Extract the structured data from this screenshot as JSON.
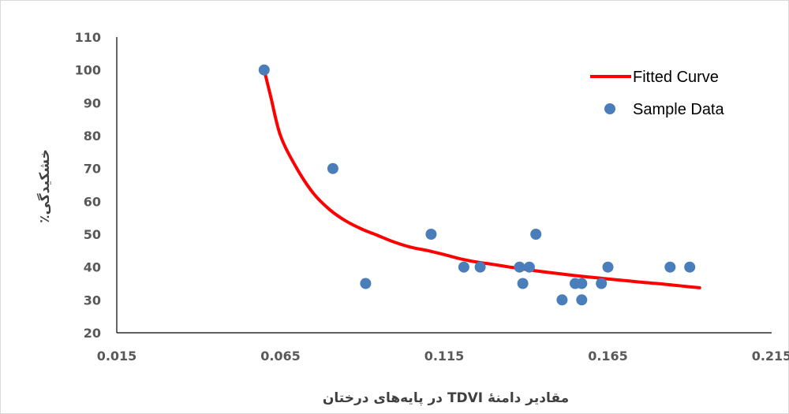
{
  "chart_data": {
    "type": "scatter",
    "title": "",
    "xlabel": "مقادیر دامنهٔ TDVI در پایه‌های درختان",
    "ylabel": "خشکیدگی٪",
    "xlim": [
      0.015,
      0.215
    ],
    "ylim": [
      20,
      110
    ],
    "x_ticks": [
      "0.015",
      "0.065",
      "0.115",
      "0.165",
      "0.215"
    ],
    "y_ticks": [
      "20",
      "30",
      "40",
      "50",
      "60",
      "70",
      "80",
      "90",
      "100",
      "110"
    ],
    "grid": false,
    "legend_position": "top-right",
    "series": [
      {
        "name": "Sample Data",
        "kind": "scatter",
        "color": "#4a7ebb",
        "points": [
          [
            0.06,
            100
          ],
          [
            0.081,
            70
          ],
          [
            0.091,
            35
          ],
          [
            0.111,
            50
          ],
          [
            0.121,
            40
          ],
          [
            0.126,
            40
          ],
          [
            0.138,
            40
          ],
          [
            0.139,
            35
          ],
          [
            0.141,
            40
          ],
          [
            0.143,
            50
          ],
          [
            0.151,
            30
          ],
          [
            0.155,
            35
          ],
          [
            0.157,
            35
          ],
          [
            0.157,
            30
          ],
          [
            0.163,
            35
          ],
          [
            0.165,
            40
          ],
          [
            0.184,
            40
          ],
          [
            0.19,
            40
          ]
        ]
      },
      {
        "name": "Fitted Curve",
        "kind": "line",
        "color": "#ff0000",
        "points": [
          [
            0.06,
            100
          ],
          [
            0.062,
            92
          ],
          [
            0.065,
            80
          ],
          [
            0.07,
            70
          ],
          [
            0.075,
            62.5
          ],
          [
            0.08,
            57.5
          ],
          [
            0.085,
            54
          ],
          [
            0.09,
            51.5
          ],
          [
            0.095,
            49.5
          ],
          [
            0.1,
            47.5
          ],
          [
            0.105,
            46
          ],
          [
            0.11,
            45
          ],
          [
            0.115,
            43.8
          ],
          [
            0.12,
            42.5
          ],
          [
            0.125,
            41.5
          ],
          [
            0.13,
            40.8
          ],
          [
            0.135,
            40
          ],
          [
            0.14,
            39.3
          ],
          [
            0.145,
            38.6
          ],
          [
            0.15,
            38
          ],
          [
            0.155,
            37.4
          ],
          [
            0.16,
            36.9
          ],
          [
            0.165,
            36.4
          ],
          [
            0.17,
            35.9
          ],
          [
            0.175,
            35.4
          ],
          [
            0.18,
            35
          ],
          [
            0.185,
            34.5
          ],
          [
            0.19,
            34
          ],
          [
            0.193,
            33.7
          ]
        ]
      }
    ]
  }
}
